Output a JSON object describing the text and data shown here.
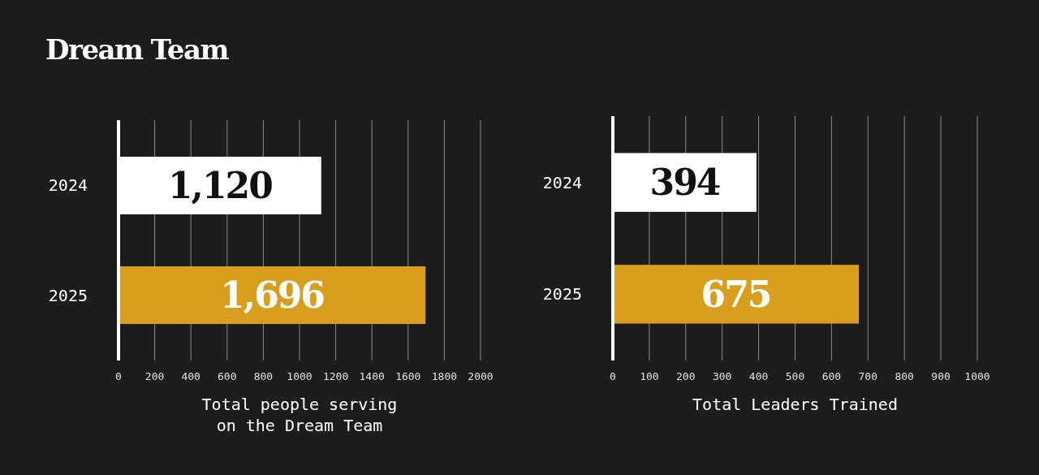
{
  "chart_data": [
    {
      "type": "bar",
      "title": "Dream Team",
      "orientation": "horizontal",
      "categories": [
        "2024",
        "2025"
      ],
      "values": [
        1120,
        1696
      ],
      "colors": [
        "#ffffff",
        "#d99e1c"
      ],
      "value_labels": [
        "1,120",
        "1,696"
      ],
      "xlim": [
        0,
        2000
      ],
      "xticks": [
        0,
        200,
        400,
        600,
        800,
        1000,
        1200,
        1400,
        1600,
        1800,
        2000
      ],
      "grid": "x",
      "xlabel": "Total people serving on the Dream Team"
    },
    {
      "type": "bar",
      "orientation": "horizontal",
      "categories": [
        "2024",
        "2025"
      ],
      "values": [
        394,
        675
      ],
      "colors": [
        "#ffffff",
        "#d99e1c"
      ],
      "value_labels": [
        "394",
        "675"
      ],
      "xlim": [
        0,
        1000
      ],
      "xticks": [
        0,
        100,
        200,
        300,
        400,
        500,
        600,
        700,
        800,
        900,
        1000
      ],
      "grid": "x",
      "xlabel": "Total Leaders Trained"
    }
  ]
}
